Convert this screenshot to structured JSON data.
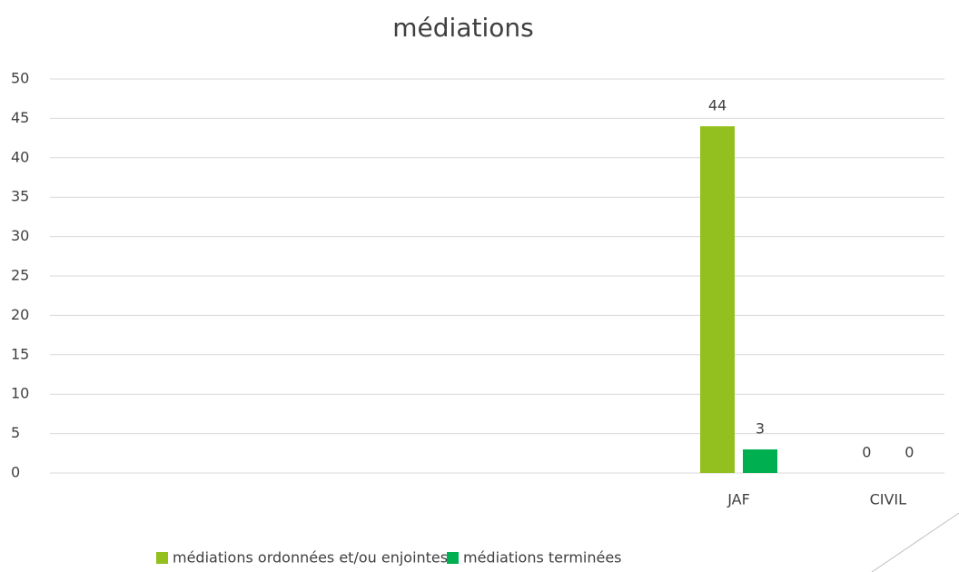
{
  "chart_data": {
    "type": "bar",
    "title": "médiations",
    "categories": [
      null,
      null,
      null,
      null,
      "JAF",
      "CIVIL"
    ],
    "series": [
      {
        "name": "médiations ordonnées et/ou enjointes",
        "color": "#93c01f",
        "values": [
          null,
          null,
          null,
          null,
          44,
          0
        ]
      },
      {
        "name": "médiations terminées",
        "color": "#00b050",
        "values": [
          null,
          null,
          null,
          null,
          3,
          0
        ]
      }
    ],
    "ylim": [
      0,
      50
    ],
    "yticks": [
      0,
      5,
      10,
      15,
      20,
      25,
      30,
      35,
      40,
      45,
      50
    ],
    "grid": true,
    "legend": "bottom"
  }
}
